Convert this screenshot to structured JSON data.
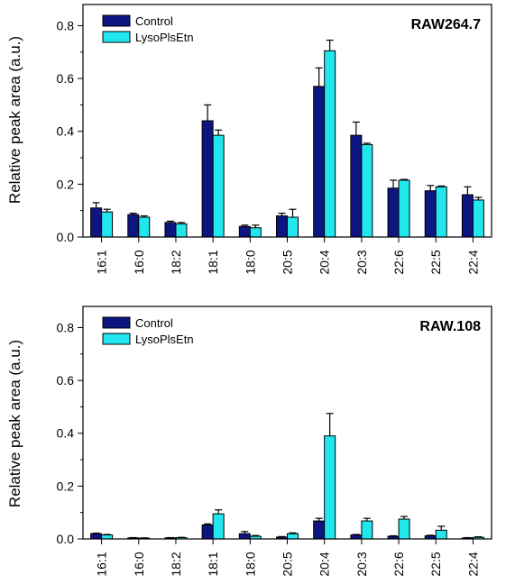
{
  "colors": {
    "control": "#0d1580",
    "lyso": "#22e6ee"
  },
  "chart_data": [
    {
      "type": "bar",
      "title": "RAW264.7",
      "xlabel": "",
      "ylabel": "Relative peak area (a.u.)",
      "ylim": [
        0,
        0.88
      ],
      "yticks": [
        "0.0",
        "0.2",
        "0.4",
        "0.6",
        "0.8"
      ],
      "legend_position": "top-left",
      "categories": [
        "16:1",
        "16:0",
        "18:2",
        "18:1",
        "18:0",
        "20:5",
        "20:4",
        "20:3",
        "22:6",
        "22:5",
        "22:4"
      ],
      "series": [
        {
          "name": "Control",
          "values": [
            0.11,
            0.085,
            0.055,
            0.44,
            0.04,
            0.08,
            0.57,
            0.385,
            0.185,
            0.175,
            0.16
          ],
          "errors": [
            0.02,
            0.005,
            0.005,
            0.06,
            0.005,
            0.01,
            0.07,
            0.05,
            0.03,
            0.02,
            0.03
          ]
        },
        {
          "name": "LysoPlsEtn",
          "values": [
            0.095,
            0.075,
            0.05,
            0.385,
            0.035,
            0.075,
            0.705,
            0.35,
            0.215,
            0.19,
            0.14
          ],
          "errors": [
            0.01,
            0.005,
            0.005,
            0.02,
            0.01,
            0.03,
            0.04,
            0.005,
            0.003,
            0.003,
            0.01
          ]
        }
      ]
    },
    {
      "type": "bar",
      "title": "RAW.108",
      "xlabel": "",
      "ylabel": "Relative peak area (a.u.)",
      "ylim": [
        0,
        0.88
      ],
      "yticks": [
        "0.0",
        "0.2",
        "0.4",
        "0.6",
        "0.8"
      ],
      "legend_position": "top-left",
      "categories": [
        "16:1",
        "16:0",
        "18:2",
        "18:1",
        "18:0",
        "20:5",
        "20:4",
        "20:3",
        "22:6",
        "22:5",
        "22:4"
      ],
      "series": [
        {
          "name": "Control",
          "values": [
            0.02,
            0.004,
            0.004,
            0.053,
            0.02,
            0.007,
            0.068,
            0.015,
            0.01,
            0.012,
            0.004
          ],
          "errors": [
            0.002,
            0.001,
            0.001,
            0.004,
            0.008,
            0.002,
            0.01,
            0.002,
            0.002,
            0.002,
            0.001
          ]
        },
        {
          "name": "LysoPlsEtn",
          "values": [
            0.015,
            0.003,
            0.005,
            0.095,
            0.01,
            0.02,
            0.39,
            0.068,
            0.075,
            0.033,
            0.006
          ],
          "errors": [
            0.002,
            0.001,
            0.001,
            0.015,
            0.003,
            0.003,
            0.085,
            0.01,
            0.01,
            0.015,
            0.002
          ]
        }
      ]
    }
  ]
}
